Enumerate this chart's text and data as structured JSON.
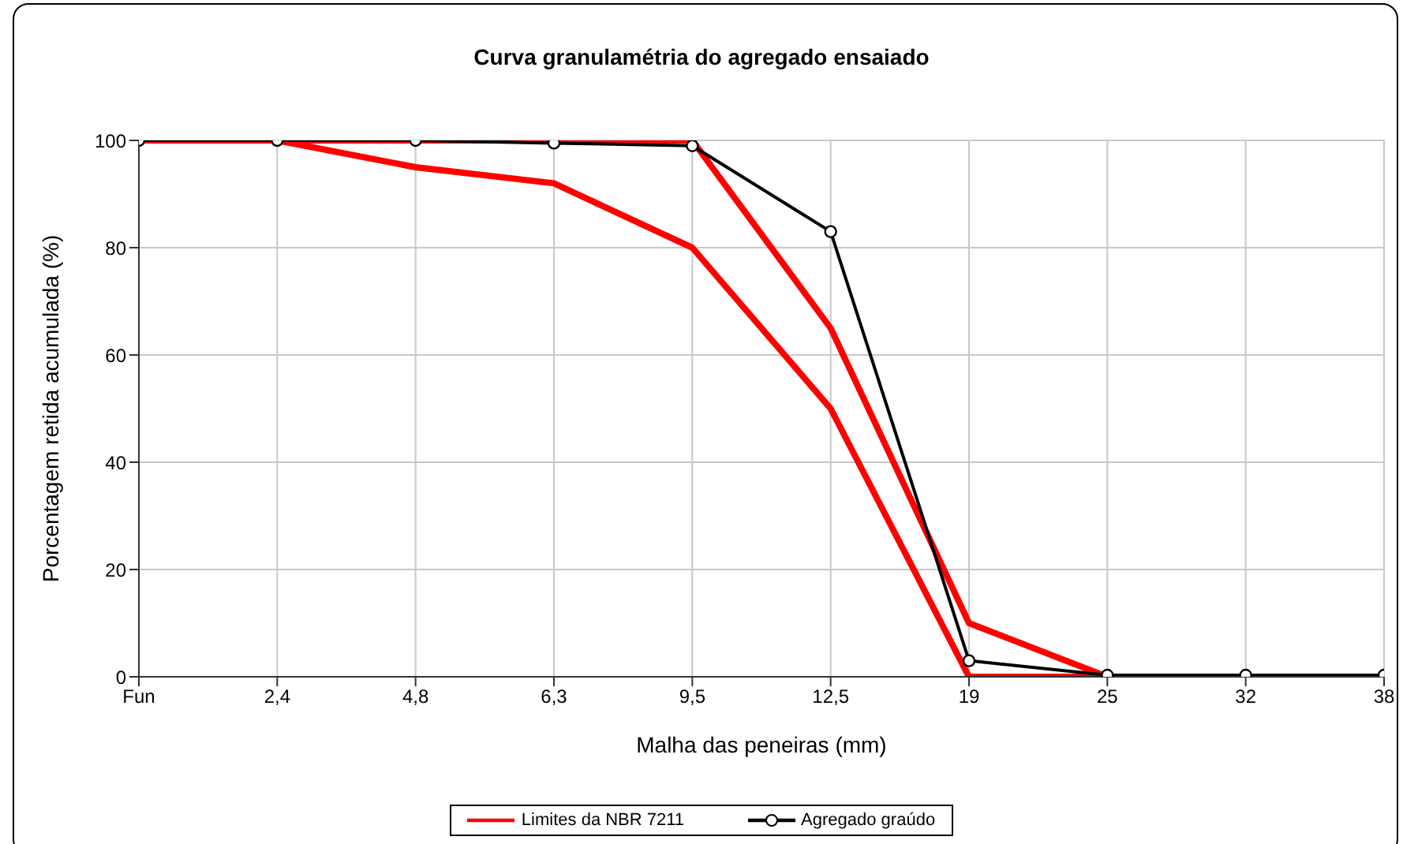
{
  "chart_data": {
    "type": "line",
    "title": "Curva granulamétria do agregado ensaiado",
    "xlabel": "Malha das peneiras (mm)",
    "ylabel": "Porcentagem retida acumulada (%)",
    "categories": [
      "Fun",
      "2,4",
      "4,8",
      "6,3",
      "9,5",
      "12,5",
      "19",
      "25",
      "32",
      "38"
    ],
    "series": [
      {
        "name": "Limites da NBR 7211",
        "color": "#ff0000",
        "marker": "none",
        "values": [
          100,
          100,
          100,
          100,
          100,
          65,
          10,
          0,
          0,
          0
        ]
      },
      {
        "color": "#ff0000",
        "marker": "none",
        "values": [
          100,
          100,
          95,
          92,
          80,
          50,
          0,
          0,
          0,
          0
        ]
      },
      {
        "name": "Agregado graúdo",
        "color": "#000000",
        "marker": "circle",
        "values": [
          100,
          100,
          100,
          99.5,
          99,
          83,
          3,
          0.3,
          0.3,
          0.3
        ]
      }
    ],
    "ylim": [
      0,
      100
    ],
    "yticks": [
      0,
      20,
      40,
      60,
      80,
      100
    ],
    "grid": true,
    "legend": "bottom"
  }
}
